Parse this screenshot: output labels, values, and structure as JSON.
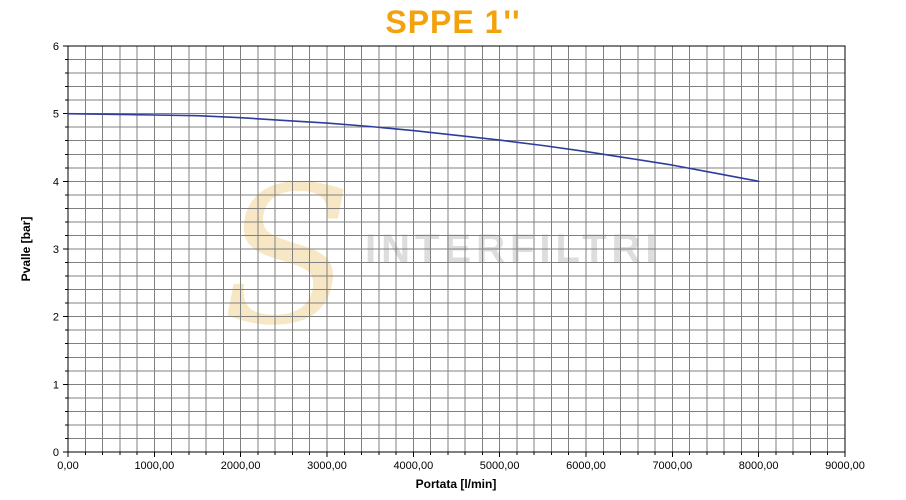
{
  "chart_data": {
    "type": "line",
    "title": "SPPE 1''",
    "xlabel": "Portata [l/min]",
    "ylabel": "Pvalle [bar]",
    "xlim": [
      0,
      9000
    ],
    "ylim": [
      0,
      6
    ],
    "x_major_step": 1000,
    "x_minor_step": 200,
    "y_major_step": 1,
    "y_minor_step": 0.2,
    "grid": true,
    "legend": "none",
    "x_tick_labels": [
      "0,00",
      "1000,00",
      "2000,00",
      "3000,00",
      "4000,00",
      "5000,00",
      "6000,00",
      "7000,00",
      "8000,00",
      "9000,00"
    ],
    "y_tick_labels": [
      "0",
      "1",
      "2",
      "3",
      "4",
      "5",
      "6"
    ],
    "series": [
      {
        "name": "SPPE 1''",
        "color": "#2e3d9b",
        "x": [
          0,
          500,
          1000,
          1500,
          2000,
          2500,
          3000,
          3500,
          4000,
          4500,
          5000,
          5500,
          6000,
          6500,
          7000,
          7500,
          8000
        ],
        "y": [
          5.0,
          4.99,
          4.98,
          4.97,
          4.94,
          4.9,
          4.86,
          4.81,
          4.75,
          4.68,
          4.61,
          4.53,
          4.44,
          4.34,
          4.24,
          4.12,
          4.0
        ]
      }
    ],
    "watermark": {
      "logo": "S",
      "text": "INTERFILTRI",
      "logo_color": "rgba(238,196,110,0.40)",
      "text_color": "rgba(180,180,180,0.45)"
    },
    "colors": {
      "grid": "#808080",
      "axis": "#000000",
      "title": "#F2A20C",
      "plot_border": "#000000"
    }
  }
}
